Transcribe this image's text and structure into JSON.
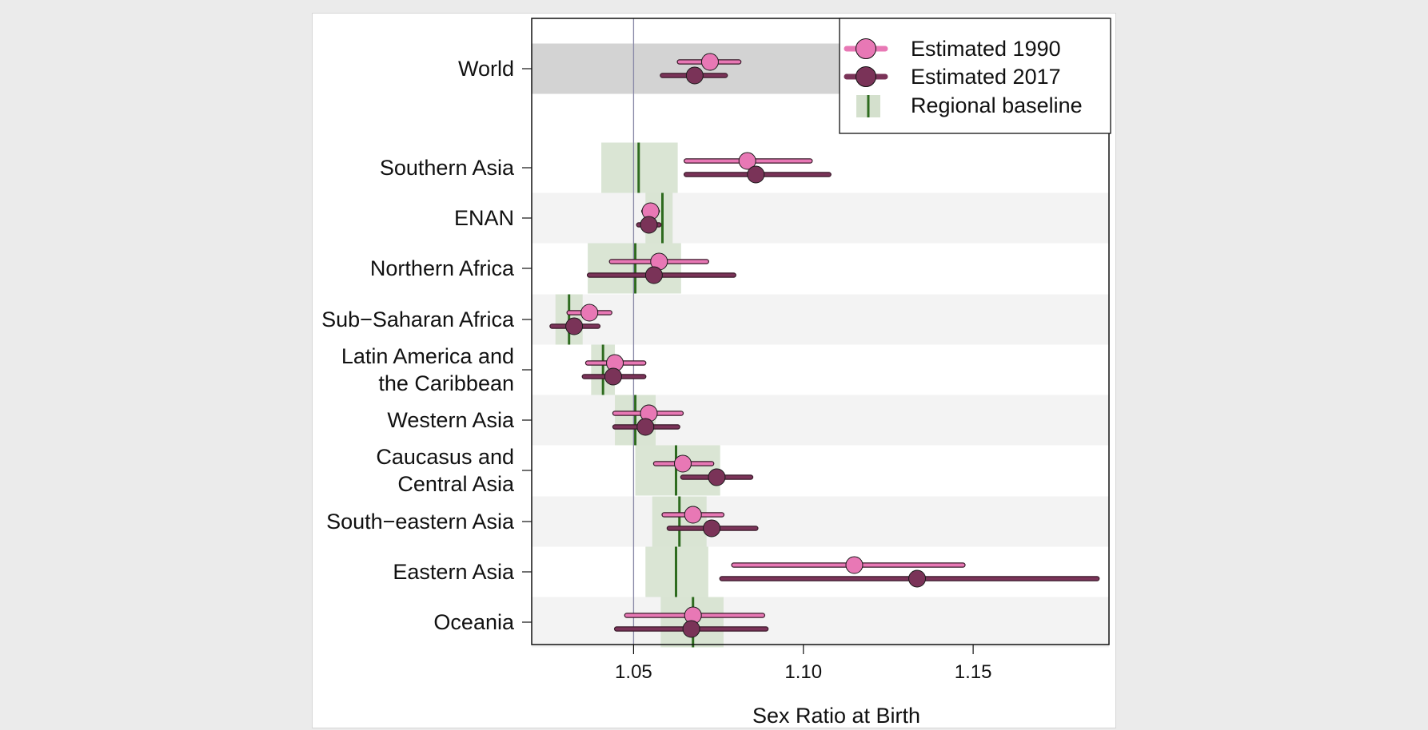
{
  "chart_data": {
    "type": "scatter",
    "title": "",
    "xlabel": "Sex Ratio at Birth",
    "ylabel": "",
    "xlim": [
      1.02,
      1.19
    ],
    "xticks": [
      1.05,
      1.1,
      1.15
    ],
    "xtick_labels": [
      "1.05",
      "1.10",
      "1.15"
    ],
    "reference_line": 1.05,
    "grid": false,
    "legend_position": "top-right",
    "colors": {
      "estimated_1990": "#e878b5",
      "estimated_2017": "#7a3358",
      "baseline_line": "#2e6b1f",
      "baseline_band": "#d4e0cd",
      "row_shade": "#f3f3f3",
      "world_shade": "#d3d3d3"
    },
    "legend": [
      {
        "key": "estimated_1990",
        "label": "Estimated 1990"
      },
      {
        "key": "estimated_2017",
        "label": "Estimated 2017"
      },
      {
        "key": "baseline",
        "label": "Regional baseline"
      }
    ],
    "regions": [
      {
        "label_lines": [
          "World"
        ],
        "world": true,
        "est_1990": {
          "value": 1.0725,
          "low": 1.0635,
          "high": 1.081
        },
        "est_2017": {
          "value": 1.068,
          "low": 1.0585,
          "high": 1.077
        }
      },
      {
        "label_lines": [
          "Southern Asia"
        ],
        "baseline": {
          "value": 1.0515,
          "low": 1.0405,
          "high": 1.063
        },
        "est_1990": {
          "value": 1.0835,
          "low": 1.0655,
          "high": 1.102
        },
        "est_2017": {
          "value": 1.086,
          "low": 1.0655,
          "high": 1.1075
        }
      },
      {
        "label_lines": [
          "ENAN"
        ],
        "baseline": {
          "value": 1.0585,
          "low": 1.0535,
          "high": 1.0615
        },
        "est_1990": {
          "value": 1.055,
          "low": 1.053,
          "high": 1.057
        },
        "est_2017": {
          "value": 1.0545,
          "low": 1.0515,
          "high": 1.0575
        }
      },
      {
        "label_lines": [
          "Northern Africa"
        ],
        "baseline": {
          "value": 1.0505,
          "low": 1.0365,
          "high": 1.064
        },
        "est_1990": {
          "value": 1.0575,
          "low": 1.0435,
          "high": 1.0715
        },
        "est_2017": {
          "value": 1.056,
          "low": 1.037,
          "high": 1.0795
        }
      },
      {
        "label_lines": [
          "Sub−Saharan Africa"
        ],
        "baseline": {
          "value": 1.031,
          "low": 1.027,
          "high": 1.035
        },
        "est_1990": {
          "value": 1.037,
          "low": 1.031,
          "high": 1.043
        },
        "est_2017": {
          "value": 1.0325,
          "low": 1.026,
          "high": 1.0395
        }
      },
      {
        "label_lines": [
          "Latin America and",
          "the Caribbean"
        ],
        "baseline": {
          "value": 1.041,
          "low": 1.0375,
          "high": 1.0445
        },
        "est_1990": {
          "value": 1.0445,
          "low": 1.0365,
          "high": 1.053
        },
        "est_2017": {
          "value": 1.044,
          "low": 1.0355,
          "high": 1.053
        }
      },
      {
        "label_lines": [
          "Western Asia"
        ],
        "baseline": {
          "value": 1.0505,
          "low": 1.0445,
          "high": 1.0565
        },
        "est_1990": {
          "value": 1.0545,
          "low": 1.0445,
          "high": 1.064
        },
        "est_2017": {
          "value": 1.0535,
          "low": 1.0445,
          "high": 1.063
        }
      },
      {
        "label_lines": [
          "Caucasus and",
          "Central Asia"
        ],
        "baseline": {
          "value": 1.0625,
          "low": 1.0505,
          "high": 1.0755
        },
        "est_1990": {
          "value": 1.0645,
          "low": 1.0565,
          "high": 1.073
        },
        "est_2017": {
          "value": 1.0745,
          "low": 1.0645,
          "high": 1.0845
        }
      },
      {
        "label_lines": [
          "South−eastern Asia"
        ],
        "baseline": {
          "value": 1.0635,
          "low": 1.0555,
          "high": 1.0715
        },
        "est_1990": {
          "value": 1.0675,
          "low": 1.059,
          "high": 1.076
        },
        "est_2017": {
          "value": 1.073,
          "low": 1.0605,
          "high": 1.086
        }
      },
      {
        "label_lines": [
          "Eastern Asia"
        ],
        "baseline": {
          "value": 1.0625,
          "low": 1.0535,
          "high": 1.072
        },
        "est_1990": {
          "value": 1.115,
          "low": 1.0795,
          "high": 1.147
        },
        "est_2017": {
          "value": 1.1335,
          "low": 1.076,
          "high": 1.1865
        }
      },
      {
        "label_lines": [
          "Oceania"
        ],
        "baseline": {
          "value": 1.0675,
          "low": 1.058,
          "high": 1.0765
        },
        "est_1990": {
          "value": 1.0675,
          "low": 1.048,
          "high": 1.088
        },
        "est_2017": {
          "value": 1.067,
          "low": 1.045,
          "high": 1.089
        }
      }
    ]
  }
}
